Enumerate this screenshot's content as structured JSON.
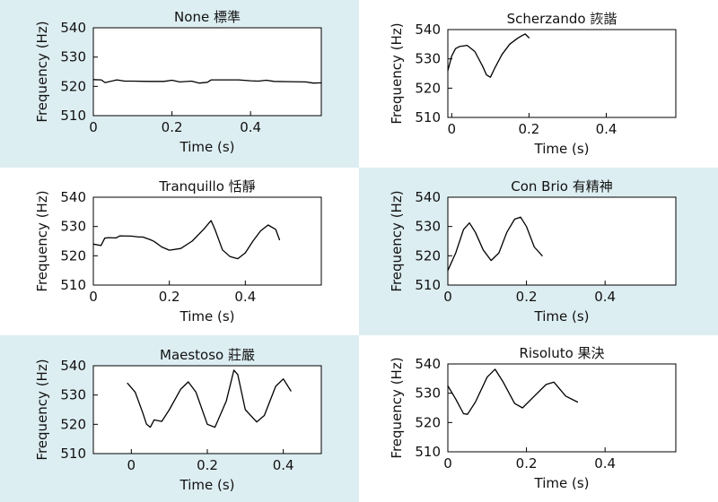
{
  "colors": {
    "panel_tint": "#ddeef2",
    "panel_plain": "#ffffff",
    "line": "#000000"
  },
  "chart_data": [
    {
      "type": "line",
      "title": "None 標準",
      "xlabel": "Time (s)",
      "ylabel": "Frequency (Hz)",
      "xlim": [
        0,
        0.58
      ],
      "ylim": [
        510,
        540
      ],
      "xticks": [
        0,
        0.2,
        0.4
      ],
      "yticks": [
        510,
        520,
        530,
        540
      ],
      "background": "tint",
      "x": [
        0,
        0.02,
        0.03,
        0.06,
        0.08,
        0.1,
        0.14,
        0.18,
        0.2,
        0.22,
        0.25,
        0.27,
        0.29,
        0.3,
        0.33,
        0.37,
        0.4,
        0.42,
        0.44,
        0.46,
        0.5,
        0.54,
        0.56,
        0.58
      ],
      "values": [
        522.3,
        522.2,
        521.3,
        522.2,
        521.8,
        521.8,
        521.7,
        521.7,
        522.1,
        521.5,
        521.8,
        521.1,
        521.4,
        522.2,
        522.2,
        522.2,
        521.9,
        521.8,
        522.1,
        521.7,
        521.6,
        521.5,
        521.1,
        521.2
      ]
    },
    {
      "type": "line",
      "title": "Scherzando 詼諧",
      "xlabel": "Time (s)",
      "ylabel": "Frequency (Hz)",
      "xlim": [
        -0.01,
        0.58
      ],
      "ylim": [
        510,
        540
      ],
      "xticks": [
        0,
        0.2,
        0.4
      ],
      "yticks": [
        510,
        520,
        530,
        540
      ],
      "background": "plain",
      "x": [
        -0.01,
        0,
        0.01,
        0.02,
        0.04,
        0.06,
        0.08,
        0.09,
        0.1,
        0.11,
        0.13,
        0.15,
        0.17,
        0.18,
        0.19,
        0.2
      ],
      "values": [
        526,
        531,
        533.5,
        534.2,
        534.6,
        532.5,
        527.5,
        524.5,
        523.7,
        526.5,
        531.5,
        535,
        537,
        537.8,
        538.5,
        537.2
      ]
    },
    {
      "type": "line",
      "title": "Tranquillo 恬靜",
      "xlabel": "Time (s)",
      "ylabel": "Frequency (Hz)",
      "xlim": [
        0,
        0.6
      ],
      "ylim": [
        510,
        540
      ],
      "xticks": [
        0,
        0.2,
        0.4
      ],
      "yticks": [
        510,
        520,
        530,
        540
      ],
      "background": "plain",
      "x": [
        0,
        0.02,
        0.03,
        0.04,
        0.06,
        0.07,
        0.1,
        0.12,
        0.13,
        0.15,
        0.16,
        0.18,
        0.2,
        0.23,
        0.26,
        0.29,
        0.31,
        0.32,
        0.34,
        0.36,
        0.38,
        0.4,
        0.42,
        0.44,
        0.46,
        0.48,
        0.49
      ],
      "values": [
        524,
        523.5,
        526,
        526.2,
        526.1,
        526.8,
        526.7,
        526.4,
        526.4,
        525.5,
        524.9,
        523,
        521.9,
        522.5,
        525,
        529,
        532,
        529,
        522,
        519.7,
        519,
        521,
        525,
        528.5,
        530.5,
        529,
        525.5
      ]
    },
    {
      "type": "line",
      "title": "Con Brio 有精神",
      "xlabel": "Time (s)",
      "ylabel": "Frequency (Hz)",
      "xlim": [
        0,
        0.58
      ],
      "ylim": [
        510,
        540
      ],
      "xticks": [
        0,
        0.2,
        0.4
      ],
      "yticks": [
        510,
        520,
        530,
        540
      ],
      "background": "tint",
      "x": [
        0,
        0.02,
        0.04,
        0.055,
        0.07,
        0.09,
        0.11,
        0.13,
        0.15,
        0.17,
        0.185,
        0.2,
        0.22,
        0.24
      ],
      "values": [
        515,
        521,
        529,
        531.2,
        528,
        522,
        518.4,
        521,
        528,
        532.5,
        533.2,
        530,
        523,
        520
      ]
    },
    {
      "type": "line",
      "title": "Maestoso 莊嚴",
      "xlabel": "Time (s)",
      "ylabel": "Frequency (Hz)",
      "xlim": [
        -0.1,
        0.5
      ],
      "ylim": [
        510,
        540
      ],
      "xticks": [
        0,
        0.2,
        0.4
      ],
      "yticks": [
        510,
        520,
        530,
        540
      ],
      "background": "tint",
      "x": [
        -0.01,
        0.01,
        0.03,
        0.04,
        0.05,
        0.06,
        0.08,
        0.1,
        0.13,
        0.15,
        0.17,
        0.2,
        0.22,
        0.25,
        0.27,
        0.28,
        0.3,
        0.33,
        0.35,
        0.38,
        0.4,
        0.42
      ],
      "values": [
        534,
        531,
        524,
        520,
        519,
        521.5,
        521,
        525,
        532,
        534.5,
        531,
        520,
        519,
        528,
        538.5,
        537,
        525,
        520.8,
        523,
        533,
        535.5,
        531.4
      ]
    },
    {
      "type": "line",
      "title": "Risoluto 果決",
      "xlabel": "Time (s)",
      "ylabel": "Frequency (Hz)",
      "xlim": [
        0,
        0.58
      ],
      "ylim": [
        510,
        540
      ],
      "xticks": [
        0,
        0.2,
        0.4
      ],
      "yticks": [
        510,
        520,
        530,
        540
      ],
      "background": "plain",
      "x": [
        0,
        0.02,
        0.04,
        0.05,
        0.07,
        0.1,
        0.12,
        0.14,
        0.17,
        0.19,
        0.22,
        0.25,
        0.27,
        0.3,
        0.33
      ],
      "values": [
        532.5,
        528,
        523,
        522.8,
        527,
        535.5,
        538.2,
        534,
        526.5,
        525,
        529,
        533,
        533.8,
        529,
        527
      ]
    }
  ]
}
